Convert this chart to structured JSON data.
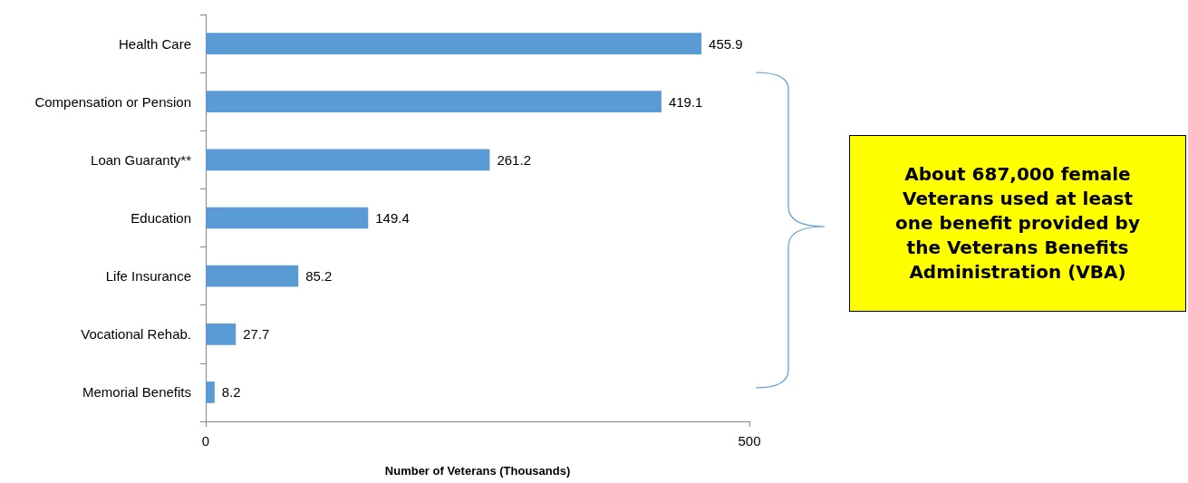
{
  "chart_data": {
    "type": "bar",
    "orientation": "horizontal",
    "categories": [
      "Health Care",
      "Compensation or Pension",
      "Loan Guaranty**",
      "Education",
      "Life Insurance",
      "Vocational Rehab.",
      "Memorial Benefits"
    ],
    "values": [
      455.9,
      419.1,
      261.2,
      149.4,
      85.2,
      27.7,
      8.2
    ],
    "color": "#5b9bd5",
    "xlabel": "Number of Veterans (Thousands)",
    "xlim": [
      0,
      500
    ],
    "xticks": [
      0,
      500
    ],
    "grid": false,
    "data_labels": true,
    "annotations": [
      "About 687,000 female Veterans used at least one benefit provided by the Veterans Benefits Administration (VBA)"
    ]
  }
}
